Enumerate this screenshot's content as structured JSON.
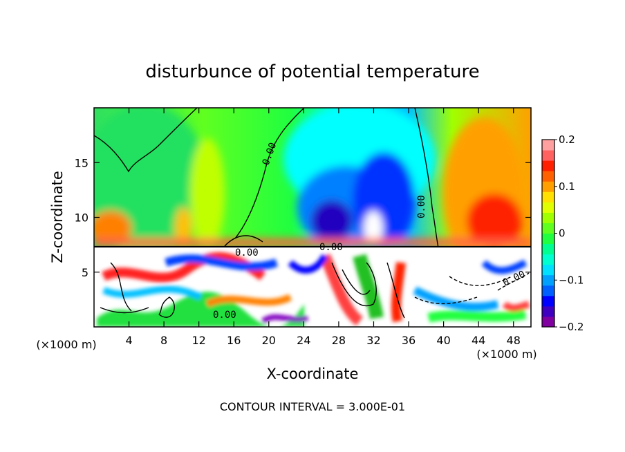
{
  "chart_data": {
    "type": "heatmap",
    "title": "disturbunce of potential temperature",
    "xlabel": "X-coordinate",
    "ylabel": "Z-coordinate",
    "x_unit": "(×1000 m)",
    "y_unit": "(×1000 m)",
    "xlim": [
      0,
      50
    ],
    "ylim": [
      0,
      20
    ],
    "x_ticks": [
      4,
      8,
      12,
      16,
      20,
      24,
      28,
      32,
      36,
      40,
      44,
      48
    ],
    "x_tick_labels": [
      "4",
      "8",
      "12",
      "16",
      "20",
      "24",
      "28",
      "32",
      "36",
      "40",
      "44",
      "48"
    ],
    "y_ticks": [
      5,
      10,
      15
    ],
    "y_tick_labels": [
      "5",
      "10",
      "15"
    ],
    "colorbar": {
      "min": -0.2,
      "max": 0.2,
      "ticks": [
        0.2,
        0.1,
        0,
        -0.1,
        -0.2
      ],
      "tick_labels": [
        "0.2",
        "0.1",
        "0",
        "−0.1",
        "−0.2"
      ],
      "colors": [
        "#8000a0",
        "#4000c0",
        "#0000ff",
        "#0060ff",
        "#00a0ff",
        "#00e0ff",
        "#00ffd0",
        "#00ff90",
        "#20ff40",
        "#60ff20",
        "#a0ff00",
        "#e0ff00",
        "#ffe000",
        "#ffa000",
        "#ff6000",
        "#ff2000",
        "#ff6060",
        "#ffa0a0"
      ]
    },
    "contour_labels": [
      "0.00",
      "0.00",
      "0.00",
      "0.00",
      "0.00",
      "0.00"
    ],
    "grid": false,
    "legend": "colorbar-right",
    "footnote": "CONTOUR INTERVAL = 3.000E-01"
  }
}
